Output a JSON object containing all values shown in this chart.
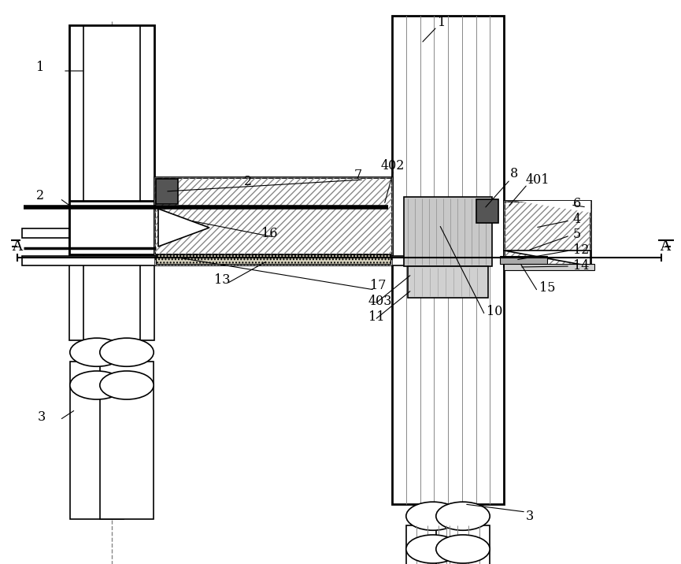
{
  "bg_color": "#ffffff",
  "figsize": [
    8.65,
    7.16
  ],
  "dpi": 100,
  "lw_thick": 2.0,
  "lw_med": 1.2,
  "lw_thin": 0.8,
  "gray_dark": "#555555",
  "gray_mid": "#aaaaaa",
  "gray_light": "#d0d0d0",
  "gray_stipple": "#c8c8c8",
  "hatch_color": "#888888"
}
